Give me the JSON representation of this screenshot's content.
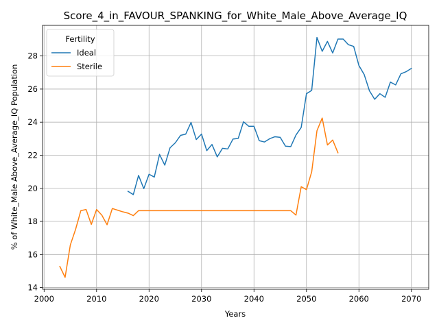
{
  "chart_data": {
    "type": "line",
    "title": "Score_4_in_FAVOUR_SPANKING_for_White_Male_Above_Average_IQ",
    "xlabel": "Years",
    "ylabel": "% of White_Male Above_Average_IQ Population",
    "xlim": [
      1999.7,
      2073.3
    ],
    "ylim": [
      13.9,
      29.85
    ],
    "xticks": [
      2000,
      2010,
      2020,
      2030,
      2040,
      2050,
      2060,
      2070
    ],
    "yticks": [
      14,
      16,
      18,
      20,
      22,
      24,
      26,
      28
    ],
    "grid": true,
    "legend": {
      "title": "Fertility",
      "position": "upper-left"
    },
    "series": [
      {
        "name": "Ideal",
        "color": "#1f77b4",
        "x": [
          2016,
          2017,
          2018,
          2019,
          2020,
          2021,
          2022,
          2023,
          2024,
          2025,
          2026,
          2027,
          2028,
          2029,
          2030,
          2031,
          2032,
          2033,
          2034,
          2035,
          2036,
          2037,
          2038,
          2039,
          2040,
          2041,
          2042,
          2043,
          2044,
          2045,
          2046,
          2047,
          2048,
          2049,
          2050,
          2051,
          2052,
          2053,
          2054,
          2055,
          2056,
          2057,
          2058,
          2059,
          2060,
          2061,
          2062,
          2063,
          2064,
          2065,
          2066,
          2067,
          2068,
          2069,
          2070
        ],
        "y": [
          19.82,
          19.62,
          20.78,
          19.98,
          20.85,
          20.68,
          22.05,
          21.4,
          22.45,
          22.75,
          23.2,
          23.28,
          23.98,
          22.95,
          23.28,
          22.28,
          22.65,
          21.9,
          22.42,
          22.38,
          22.98,
          23.02,
          24.02,
          23.75,
          23.75,
          22.88,
          22.8,
          23.0,
          23.12,
          23.08,
          22.55,
          22.52,
          23.22,
          23.68,
          25.72,
          25.92,
          29.12,
          28.28,
          28.88,
          28.18,
          29.02,
          29.02,
          28.68,
          28.58,
          27.42,
          26.88,
          25.9,
          25.38,
          25.72,
          25.5,
          26.42,
          26.25,
          26.92,
          27.05,
          27.25
        ]
      },
      {
        "name": "Sterile",
        "color": "#ff7f0e",
        "x": [
          2003,
          2004,
          2005,
          2006,
          2007,
          2008,
          2009,
          2010,
          2011,
          2012,
          2013,
          2014,
          2015,
          2016,
          2017,
          2018,
          2019,
          2020,
          2021,
          2022,
          2023,
          2024,
          2025,
          2026,
          2027,
          2028,
          2029,
          2030,
          2031,
          2032,
          2033,
          2034,
          2035,
          2036,
          2037,
          2038,
          2039,
          2040,
          2041,
          2042,
          2043,
          2044,
          2045,
          2046,
          2047,
          2048,
          2049,
          2050,
          2051,
          2052,
          2053,
          2054,
          2055,
          2056
        ],
        "y": [
          15.28,
          14.62,
          16.58,
          17.52,
          18.65,
          18.72,
          17.82,
          18.72,
          18.38,
          17.8,
          18.78,
          18.68,
          18.58,
          18.5,
          18.35,
          18.65,
          18.65,
          18.65,
          18.65,
          18.65,
          18.65,
          18.65,
          18.65,
          18.65,
          18.65,
          18.65,
          18.65,
          18.65,
          18.65,
          18.65,
          18.65,
          18.65,
          18.65,
          18.65,
          18.65,
          18.65,
          18.65,
          18.65,
          18.65,
          18.65,
          18.65,
          18.65,
          18.65,
          18.65,
          18.65,
          18.38,
          20.1,
          19.92,
          21.0,
          23.48,
          24.25,
          22.62,
          22.92,
          22.15
        ]
      }
    ]
  }
}
